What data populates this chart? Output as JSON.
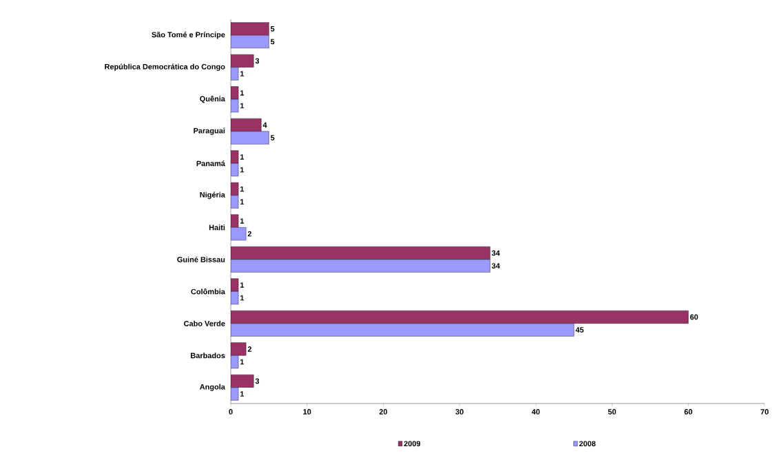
{
  "chart_data": {
    "type": "bar",
    "orientation": "horizontal",
    "categories": [
      "São Tomé e Príncipe",
      "República Democrática do Congo",
      "Quênia",
      "Paraguai",
      "Panamá",
      "Nigéria",
      "Haiti",
      "Guiné Bissau",
      "Colômbia",
      "Cabo Verde",
      "Barbados",
      "Angola"
    ],
    "series": [
      {
        "name": "2009",
        "color": "#993366",
        "values": [
          5,
          3,
          1,
          4,
          1,
          1,
          1,
          34,
          1,
          60,
          2,
          3
        ]
      },
      {
        "name": "2008",
        "color": "#9999ff",
        "values": [
          5,
          1,
          1,
          5,
          1,
          1,
          2,
          34,
          1,
          45,
          1,
          1
        ]
      }
    ],
    "xlim": [
      0,
      70
    ],
    "xticks": [
      0,
      10,
      20,
      30,
      40,
      50,
      60,
      70
    ],
    "data_labels": true,
    "grid": false,
    "legend": "bottom"
  }
}
